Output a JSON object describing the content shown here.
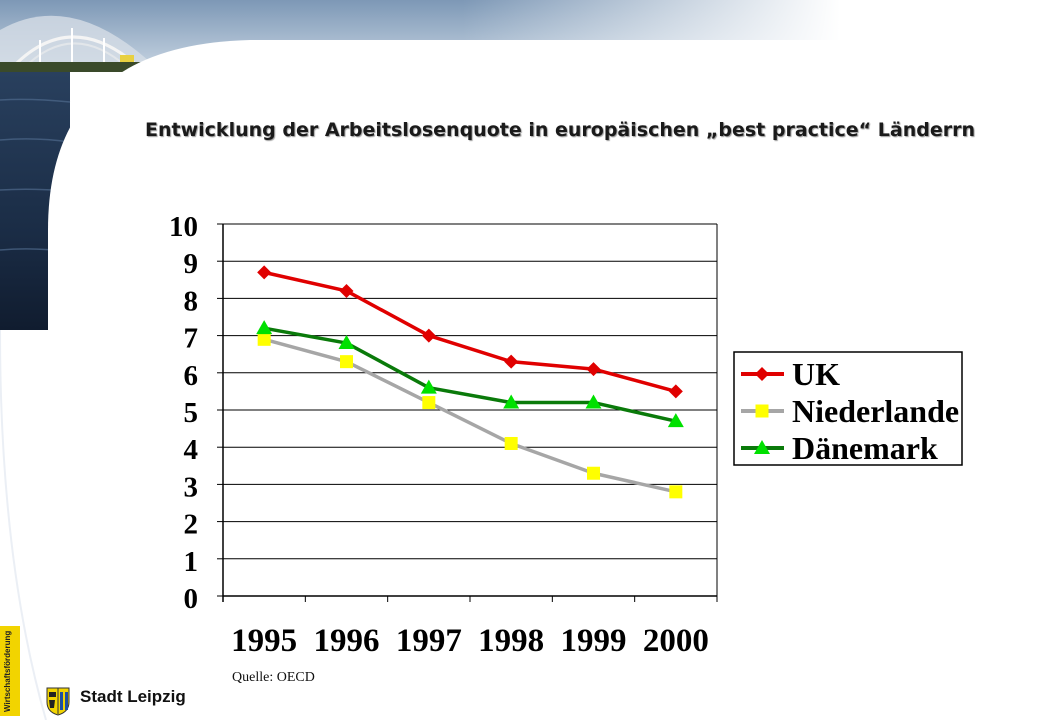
{
  "slide": {
    "title": "Entwicklung der Arbeitslosenquote  in europäischen „best practice“ Länderrn",
    "source": "Quelle: OECD",
    "city": "Stadt Leipzig",
    "badge": "Wirtschaftsförderung"
  },
  "icons": {
    "crest": "leipzig-lion-crest-icon",
    "photo": "building-photo-banner"
  },
  "chart_data": {
    "type": "line",
    "title": "",
    "xlabel": "",
    "ylabel": "",
    "categories": [
      "1995",
      "1996",
      "1997",
      "1998",
      "1999",
      "2000"
    ],
    "ylim": [
      0,
      10
    ],
    "yticks": [
      "0",
      "1",
      "2",
      "3",
      "4",
      "5",
      "6",
      "7",
      "8",
      "9",
      "10"
    ],
    "grid": true,
    "legend_position": "right",
    "series": [
      {
        "name": "UK",
        "values": [
          8.7,
          8.2,
          7.0,
          6.3,
          6.1,
          5.5
        ],
        "color": "#e00000",
        "marker": "diamond",
        "marker_color": "#e00000"
      },
      {
        "name": "Niederlande",
        "values": [
          6.9,
          6.3,
          5.2,
          4.1,
          3.3,
          2.8
        ],
        "color": "#a6a6a6",
        "marker": "square",
        "marker_color": "#ffff00"
      },
      {
        "name": "Dänemark",
        "values": [
          7.2,
          6.8,
          5.6,
          5.2,
          5.2,
          4.7
        ],
        "color": "#0a7a0a",
        "marker": "triangle",
        "marker_color": "#00e000"
      }
    ]
  }
}
